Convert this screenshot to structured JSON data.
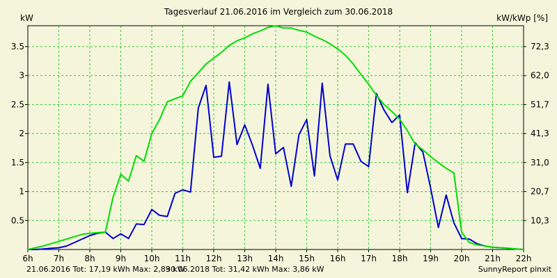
{
  "chart_data": {
    "type": "line",
    "title": "Tagesverlauf 21.06.2016 im Vergleich zum 30.06.2018",
    "ylabel_left": "kW",
    "ylabel_right": "kW/kWp [%]",
    "xlim": [
      6,
      22
    ],
    "ylim": [
      0,
      3.86
    ],
    "grid": true,
    "x_ticks": [
      {
        "x": 6,
        "label": "6h"
      },
      {
        "x": 7,
        "label": "7h"
      },
      {
        "x": 8,
        "label": "8h"
      },
      {
        "x": 9,
        "label": "9h"
      },
      {
        "x": 10,
        "label": "10h"
      },
      {
        "x": 11,
        "label": "11h"
      },
      {
        "x": 12,
        "label": "12h"
      },
      {
        "x": 13,
        "label": "13h"
      },
      {
        "x": 14,
        "label": "14h"
      },
      {
        "x": 15,
        "label": "15h"
      },
      {
        "x": 16,
        "label": "16h"
      },
      {
        "x": 17,
        "label": "17h"
      },
      {
        "x": 18,
        "label": "18h"
      },
      {
        "x": 19,
        "label": "19h"
      },
      {
        "x": 20,
        "label": "20h"
      },
      {
        "x": 21,
        "label": "21h"
      },
      {
        "x": 22,
        "label": "22h"
      }
    ],
    "y_ticks_left": [
      {
        "y": 0.5,
        "label": "0.5"
      },
      {
        "y": 1,
        "label": "1"
      },
      {
        "y": 1.5,
        "label": "1.5"
      },
      {
        "y": 2,
        "label": "2"
      },
      {
        "y": 2.5,
        "label": "2.5"
      },
      {
        "y": 3,
        "label": "3"
      },
      {
        "y": 3.5,
        "label": "3.5"
      }
    ],
    "y_ticks_right": [
      {
        "y": 0.5,
        "label": "10,3"
      },
      {
        "y": 1,
        "label": "20,7"
      },
      {
        "y": 1.5,
        "label": "31,0"
      },
      {
        "y": 2,
        "label": "41,3"
      },
      {
        "y": 2.5,
        "label": "51,7"
      },
      {
        "y": 3,
        "label": "62,0"
      },
      {
        "y": 3.5,
        "label": "72,3"
      }
    ],
    "series": [
      {
        "name": "21.06.2016",
        "color": "#0000cc",
        "x": [
          6,
          6.25,
          6.5,
          6.75,
          7,
          7.25,
          7.5,
          7.75,
          8,
          8.25,
          8.5,
          8.75,
          9,
          9.25,
          9.5,
          9.75,
          10,
          10.25,
          10.5,
          10.75,
          11,
          11.25,
          11.5,
          11.75,
          12,
          12.25,
          12.5,
          12.75,
          13,
          13.25,
          13.5,
          13.75,
          14,
          14.25,
          14.5,
          14.75,
          15,
          15.25,
          15.5,
          15.75,
          16,
          16.25,
          16.5,
          16.75,
          17,
          17.25,
          17.5,
          17.75,
          18,
          18.25,
          18.5,
          18.75,
          19,
          19.25,
          19.5,
          19.75,
          20,
          20.25,
          20.5,
          20.75,
          21,
          21.25,
          21.5,
          21.75,
          22
        ],
        "y": [
          0,
          0,
          0.01,
          0.02,
          0.03,
          0.06,
          0.12,
          0.18,
          0.24,
          0.28,
          0.3,
          0.19,
          0.27,
          0.19,
          0.44,
          0.43,
          0.69,
          0.59,
          0.57,
          0.97,
          1.03,
          0.99,
          2.44,
          2.83,
          1.59,
          1.61,
          2.89,
          1.81,
          2.15,
          1.8,
          1.4,
          2.85,
          1.65,
          1.76,
          1.09,
          1.98,
          2.24,
          1.27,
          2.87,
          1.62,
          1.2,
          1.82,
          1.82,
          1.52,
          1.43,
          2.69,
          2.4,
          2.19,
          2.32,
          0.98,
          1.84,
          1.68,
          1.06,
          0.38,
          0.94,
          0.46,
          0.19,
          0.18,
          0.1,
          0.06,
          0.04,
          0.03,
          0.02,
          0.01,
          0.0
        ]
      },
      {
        "name": "30.06.2018",
        "color": "#00dd00",
        "x": [
          6,
          6.25,
          6.5,
          6.75,
          7,
          7.25,
          7.5,
          7.75,
          8,
          8.25,
          8.5,
          8.75,
          9,
          9.25,
          9.5,
          9.75,
          10,
          10.25,
          10.5,
          10.75,
          11,
          11.25,
          11.5,
          11.75,
          12,
          12.25,
          12.5,
          12.75,
          13,
          13.25,
          13.5,
          13.75,
          14,
          14.25,
          14.5,
          14.75,
          15,
          15.25,
          15.5,
          15.75,
          16,
          16.25,
          16.5,
          16.75,
          17,
          17.25,
          17.5,
          17.75,
          18,
          18.25,
          18.5,
          18.75,
          19,
          19.25,
          19.5,
          19.75,
          20,
          20.25,
          20.5,
          20.75,
          21,
          21.25,
          21.5,
          21.75,
          22
        ],
        "y": [
          0,
          0.03,
          0.06,
          0.1,
          0.14,
          0.18,
          0.22,
          0.26,
          0.28,
          0.29,
          0.3,
          0.9,
          1.3,
          1.18,
          1.62,
          1.52,
          2.0,
          2.24,
          2.55,
          2.6,
          2.65,
          2.9,
          3.05,
          3.2,
          3.3,
          3.4,
          3.52,
          3.6,
          3.65,
          3.72,
          3.77,
          3.83,
          3.86,
          3.82,
          3.82,
          3.78,
          3.75,
          3.68,
          3.62,
          3.55,
          3.46,
          3.35,
          3.2,
          3.02,
          2.85,
          2.66,
          2.5,
          2.38,
          2.25,
          2.05,
          1.82,
          1.72,
          1.6,
          1.5,
          1.4,
          1.32,
          0.3,
          0.12,
          0.08,
          0.06,
          0.04,
          0.03,
          0.02,
          0.01,
          0.0
        ]
      }
    ]
  },
  "footer": {
    "series1_text": "21.06.2016 Tot: 17,19 kWh Max: 2,89 kW",
    "series1_color": "#0000cc",
    "series2_text": "30.06.2018 Tot: 31,42 kWh Max: 3,86 kW",
    "series2_color": "#00dd00",
    "credit": "SunnyReport pinxit"
  }
}
